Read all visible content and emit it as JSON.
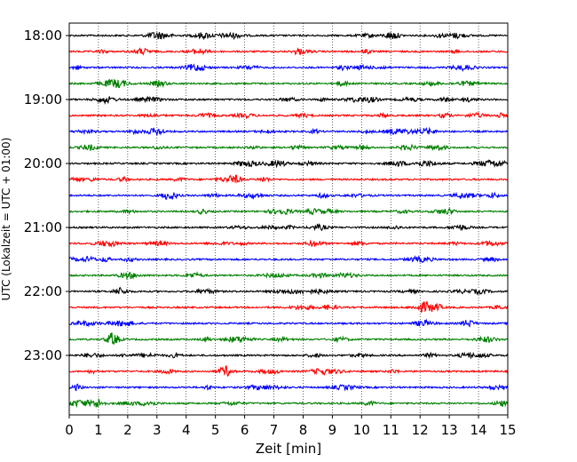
{
  "chart_data": {
    "type": "line",
    "subtype": "helicorder",
    "title": "",
    "xlabel": "Zeit  [min]",
    "ylabel": "UTC (Lokalzeit = UTC + 01:00)",
    "xlim": [
      0,
      15
    ],
    "x_ticks": [
      "0",
      "1",
      "2",
      "3",
      "4",
      "5",
      "6",
      "7",
      "8",
      "9",
      "10",
      "11",
      "12",
      "13",
      "14",
      "15"
    ],
    "y_tick_labels": [
      "18:00",
      "19:00",
      "20:00",
      "21:00",
      "22:00",
      "23:00"
    ],
    "y_tick_indices": [
      0,
      4,
      8,
      12,
      16,
      20
    ],
    "traces_per_hour": 4,
    "trace_count": 24,
    "trace_colors": [
      "#000000",
      "#ff0000",
      "#0000ff",
      "#008000"
    ],
    "grid": "vertical dotted"
  }
}
